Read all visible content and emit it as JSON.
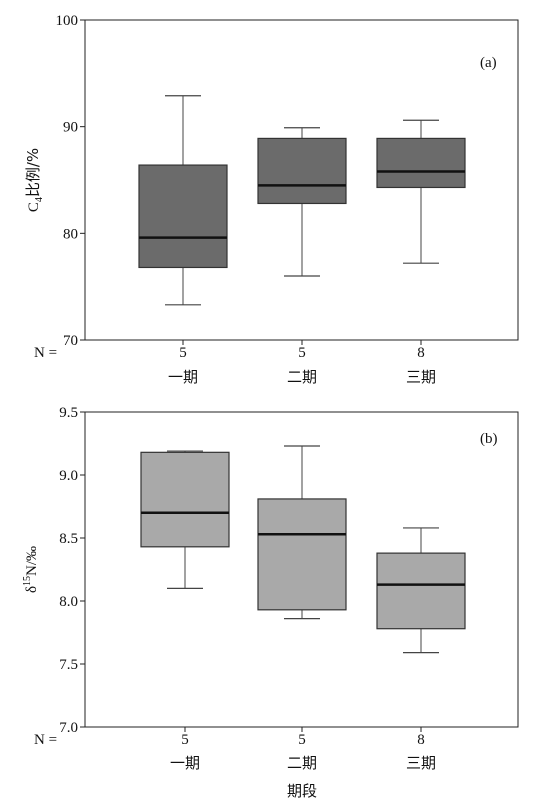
{
  "chart_data": [
    {
      "type": "boxplot",
      "panel_label": "(a)",
      "ylabel_main": "C",
      "ylabel_sub": "4",
      "ylabel_rest": "比例/%",
      "ylim": [
        70,
        100
      ],
      "yticks": [
        70,
        80,
        90,
        100
      ],
      "n_label": "N =",
      "categories": [
        "一期",
        "二期",
        "三期"
      ],
      "n": [
        "5",
        "5",
        "8"
      ],
      "box_color": "#6b6b6b",
      "boxes": [
        {
          "whisker_low": 73.3,
          "q1": 76.8,
          "median": 79.6,
          "q3": 86.4,
          "whisker_high": 92.9
        },
        {
          "whisker_low": 76.0,
          "q1": 82.8,
          "median": 84.5,
          "q3": 88.9,
          "whisker_high": 89.9
        },
        {
          "whisker_low": 77.2,
          "q1": 84.3,
          "median": 85.8,
          "q3": 88.9,
          "whisker_high": 90.6
        }
      ]
    },
    {
      "type": "boxplot",
      "panel_label": "(b)",
      "ylabel_main": "δ",
      "ylabel_sup": "15",
      "ylabel_rest": "N/‰",
      "ylim": [
        7.0,
        9.5
      ],
      "yticks": [
        "7.0",
        "7.5",
        "8.0",
        "8.5",
        "9.0",
        "9.5"
      ],
      "n_label": "N =",
      "categories": [
        "一期",
        "二期",
        "三期"
      ],
      "n": [
        "5",
        "5",
        "8"
      ],
      "xlabel": "期段",
      "box_color": "#a9a9a9",
      "boxes": [
        {
          "whisker_low": 8.1,
          "q1": 8.43,
          "median": 8.7,
          "q3": 9.18,
          "whisker_high": 9.19
        },
        {
          "whisker_low": 7.86,
          "q1": 7.93,
          "median": 8.53,
          "q3": 8.81,
          "whisker_high": 9.23
        },
        {
          "whisker_low": 7.59,
          "q1": 7.78,
          "median": 8.13,
          "q3": 8.38,
          "whisker_high": 8.58
        }
      ]
    }
  ]
}
